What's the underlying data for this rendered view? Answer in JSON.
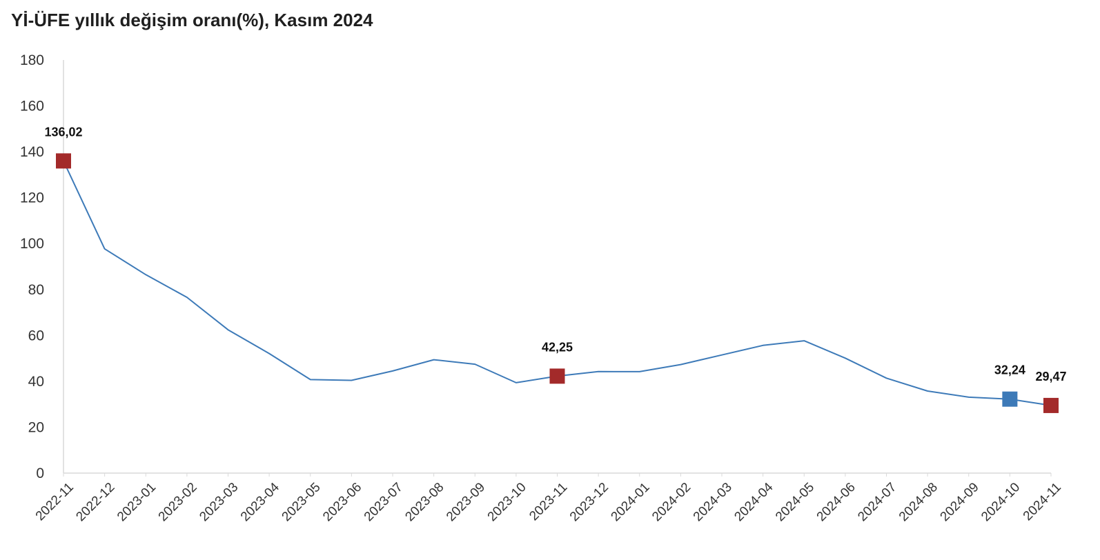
{
  "chart_data": {
    "type": "line",
    "title": "Yİ-ÜFE yıllık değişim oranı(%), Kasım 2024",
    "xlabel": "",
    "ylabel": "",
    "ylim": [
      0,
      180
    ],
    "yticks": [
      "0",
      "20",
      "40",
      "60",
      "80",
      "100",
      "120",
      "140",
      "160",
      "180"
    ],
    "grid": false,
    "categories": [
      "2022-11",
      "2022-12",
      "2023-01",
      "2023-02",
      "2023-03",
      "2023-04",
      "2023-05",
      "2023-06",
      "2023-07",
      "2023-08",
      "2023-09",
      "2023-10",
      "2023-11",
      "2023-12",
      "2024-01",
      "2024-02",
      "2024-03",
      "2024-04",
      "2024-05",
      "2024-06",
      "2024-07",
      "2024-08",
      "2024-09",
      "2024-10",
      "2024-11"
    ],
    "series": [
      {
        "color": "#3d7ab8",
        "values": [
          136.02,
          97.72,
          86.46,
          76.61,
          62.45,
          52.11,
          40.76,
          40.42,
          44.5,
          49.41,
          47.44,
          39.39,
          42.25,
          44.22,
          44.2,
          47.29,
          51.47,
          55.66,
          57.68,
          50.09,
          41.37,
          35.75,
          33.09,
          32.24,
          29.47
        ]
      }
    ],
    "highlights": [
      {
        "index": 0,
        "label": "136,02",
        "color": "#a32a2a"
      },
      {
        "index": 12,
        "label": "42,25",
        "color": "#a32a2a"
      },
      {
        "index": 23,
        "label": "32,24",
        "color": "#3d7ab8"
      },
      {
        "index": 24,
        "label": "29,47",
        "color": "#a32a2a"
      }
    ]
  }
}
